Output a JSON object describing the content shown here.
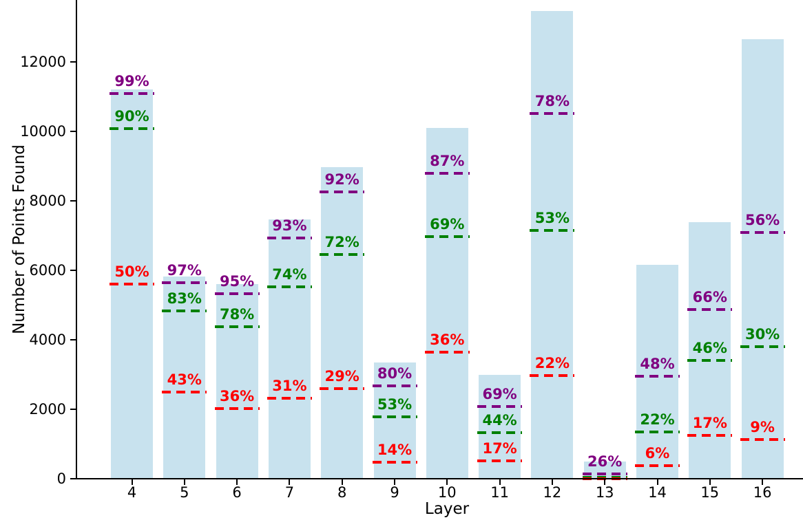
{
  "figure": {
    "background": "#ffffff",
    "bar_color": "#c8e2ee",
    "axis_color": "#000000",
    "tick_label_color": "#000000"
  },
  "chart_data": {
    "type": "bar",
    "title": "",
    "xlabel": "Layer",
    "ylabel": "Number of Points Found",
    "categories": [
      4,
      5,
      6,
      7,
      8,
      9,
      10,
      11,
      12,
      13,
      14,
      15,
      16
    ],
    "values": [
      11200,
      5820,
      5600,
      7460,
      8970,
      3350,
      10100,
      3000,
      13470,
      500,
      6150,
      7390,
      12650
    ],
    "ylim": [
      0,
      13780
    ],
    "yticks": [
      0,
      2000,
      4000,
      6000,
      8000,
      10000,
      12000
    ],
    "ytick_labels": [
      "0",
      "2000",
      "4000",
      "6000",
      "8000",
      "10000",
      "12000"
    ],
    "xtick_labels": [
      "4",
      "5",
      "6",
      "7",
      "8",
      "9",
      "10",
      "11",
      "12",
      "13",
      "14",
      "15",
      "16"
    ],
    "grid": false,
    "legend_position": "none",
    "bar_color": "#c8e2ee",
    "threshold_lines": [
      {
        "name": "purple-threshold",
        "color": "#800080",
        "style": "dashed",
        "percents": [
          99,
          97,
          95,
          93,
          92,
          80,
          87,
          69,
          78,
          26,
          48,
          66,
          56
        ],
        "labels": [
          "99%",
          "97%",
          "95%",
          "93%",
          "92%",
          "80%",
          "87%",
          "69%",
          "78%",
          "26%",
          "48%",
          "66%",
          "56%"
        ]
      },
      {
        "name": "green-threshold",
        "color": "#008000",
        "style": "dashed",
        "percents": [
          90,
          83,
          78,
          74,
          72,
          53,
          69,
          44,
          53,
          6,
          22,
          46,
          30
        ],
        "labels": [
          "90%",
          "83%",
          "78%",
          "74%",
          "72%",
          "53%",
          "69%",
          "44%",
          "53%",
          "",
          "22%",
          "46%",
          "30%"
        ]
      },
      {
        "name": "red-threshold",
        "color": "#ff0000",
        "style": "dashed",
        "percents": [
          50,
          43,
          36,
          31,
          29,
          14,
          36,
          17,
          22,
          1,
          6,
          17,
          9
        ],
        "labels": [
          "50%",
          "43%",
          "36%",
          "31%",
          "29%",
          "14%",
          "36%",
          "17%",
          "22%",
          "",
          "6%",
          "17%",
          "9%"
        ]
      }
    ]
  }
}
